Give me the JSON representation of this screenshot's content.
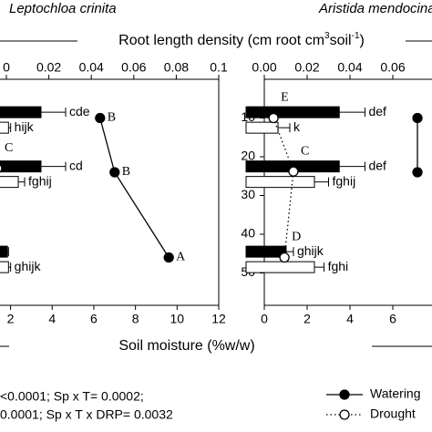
{
  "figure": {
    "x_top_label": [
      "Root length density (cm root cm",
      "3",
      "soil",
      "-1",
      ")"
    ],
    "x_bottom_label": "Soil moisture (%w/w)",
    "stats": [
      "<0.0001; Sp x T= 0.0002;",
      "0.0001; Sp x T x DRP= 0.0032"
    ]
  },
  "chart_data": [
    {
      "type": "depth-profile",
      "title": "Leptochloa crinita",
      "x2lim": [
        0,
        0.1
      ],
      "x2ticks": [
        0,
        0.02,
        0.04,
        0.06,
        0.08,
        0.1
      ],
      "xlim": [
        1.8,
        12
      ],
      "xticks": [
        2,
        4,
        6,
        8,
        10,
        12
      ],
      "ylim": [
        0,
        58
      ],
      "yticks": [],
      "bars": [
        {
          "name": "Watering",
          "color": "#000000",
          "y": [
            8.5,
            22.5,
            44.5
          ],
          "values": [
            0.0163,
            0.0163,
            0.0005
          ],
          "errors": [
            0.0116,
            0.0116,
            0.0005
          ],
          "letters": [
            "cde",
            "cd",
            null
          ]
        },
        {
          "name": "Drought",
          "color": "#ffffff",
          "y": [
            12.5,
            26.5,
            48.5
          ],
          "values": [
            0.001,
            0.0056,
            0.001
          ],
          "errors": [
            0.001,
            0.003,
            0.001
          ],
          "letters": [
            "hijk",
            "fghij",
            "ghijk"
          ]
        }
      ],
      "lines": [
        {
          "name": "Watering",
          "color": "#000000",
          "marker_fill": "#000000",
          "dashed": false,
          "y": [
            10,
            24,
            46
          ],
          "values": [
            6.3,
            7.0,
            9.6
          ],
          "letters": [
            "B",
            "B",
            "A"
          ]
        },
        {
          "name": "Drought",
          "color": "#000000",
          "marker_fill": "#ffffff",
          "dashed": true,
          "y": [
            23
          ],
          "values": [
            1.36
          ],
          "letters": [
            "C"
          ]
        }
      ]
    },
    {
      "type": "depth-profile",
      "title": "Aristida mendocina",
      "x2lim": [
        0,
        0.1
      ],
      "x2ticks": [
        {
          "value": 0,
          "label": "0.00"
        },
        0.02,
        0.04,
        0.06
      ],
      "xlim": [
        0,
        10
      ],
      "xticks": [
        0,
        2,
        4,
        6
      ],
      "ylim": [
        0,
        58
      ],
      "yticks": [
        10,
        20,
        30,
        40,
        50
      ],
      "bars": [
        {
          "name": "Watering",
          "color": "#000000",
          "y": [
            8.5,
            22.5,
            44.5
          ],
          "values": [
            0.035,
            0.035,
            0.0102
          ],
          "errors": [
            0.012,
            0.012,
            0.0034
          ],
          "letters": [
            "def",
            "def",
            "ghijk"
          ]
        },
        {
          "name": "Drought",
          "color": "#ffffff",
          "y": [
            12.5,
            26.5,
            48.5
          ],
          "values": [
            0.0064,
            0.0234,
            0.0234
          ],
          "errors": [
            0.0055,
            0.0066,
            0.0045
          ],
          "letters": [
            "k",
            "fghij",
            "fghi"
          ]
        }
      ],
      "lines": [
        {
          "name": "Watering",
          "color": "#000000",
          "marker_fill": "#000000",
          "dashed": false,
          "y": [
            10,
            24
          ],
          "values": [
            7.15,
            7.15
          ],
          "letters": [
            null,
            null
          ]
        },
        {
          "name": "Drought",
          "color": "#000000",
          "marker_fill": "#ffffff",
          "dashed": true,
          "y": [
            10,
            23.8,
            46
          ],
          "values": [
            0.43,
            1.36,
            0.94
          ],
          "letters": [
            "E",
            "C",
            "D"
          ]
        }
      ]
    }
  ]
}
